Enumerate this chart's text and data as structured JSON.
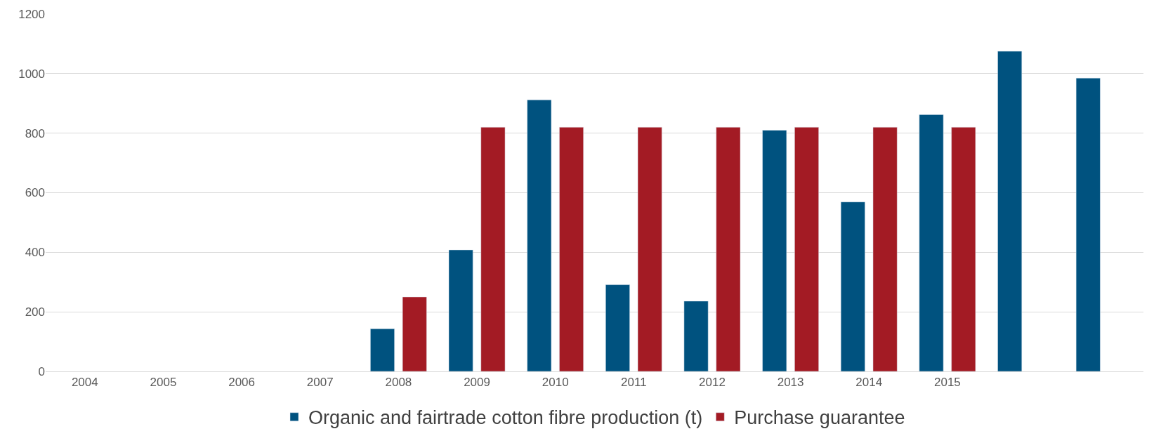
{
  "chart_data": {
    "type": "bar",
    "categories": [
      "2004",
      "2005",
      "2006",
      "2007",
      "2008",
      "2009",
      "2010",
      "2011",
      "2012",
      "2013",
      "2014",
      "2015",
      null,
      null
    ],
    "series": [
      {
        "name": "Organic and fairtrade cotton fibre production (t)",
        "color": "#00527f",
        "values": [
          null,
          null,
          null,
          null,
          143,
          408,
          912,
          291,
          236,
          810,
          569,
          862,
          1075,
          985
        ]
      },
      {
        "name": "Purchase guarantee",
        "color": "#a31b24",
        "values": [
          null,
          null,
          null,
          null,
          250,
          820,
          820,
          820,
          820,
          820,
          820,
          820,
          null,
          null
        ]
      }
    ],
    "ylim": [
      0,
      1200
    ],
    "yticks": [
      0,
      200,
      400,
      600,
      800,
      1000,
      1200
    ],
    "grid": "y",
    "legend": "bottom"
  }
}
